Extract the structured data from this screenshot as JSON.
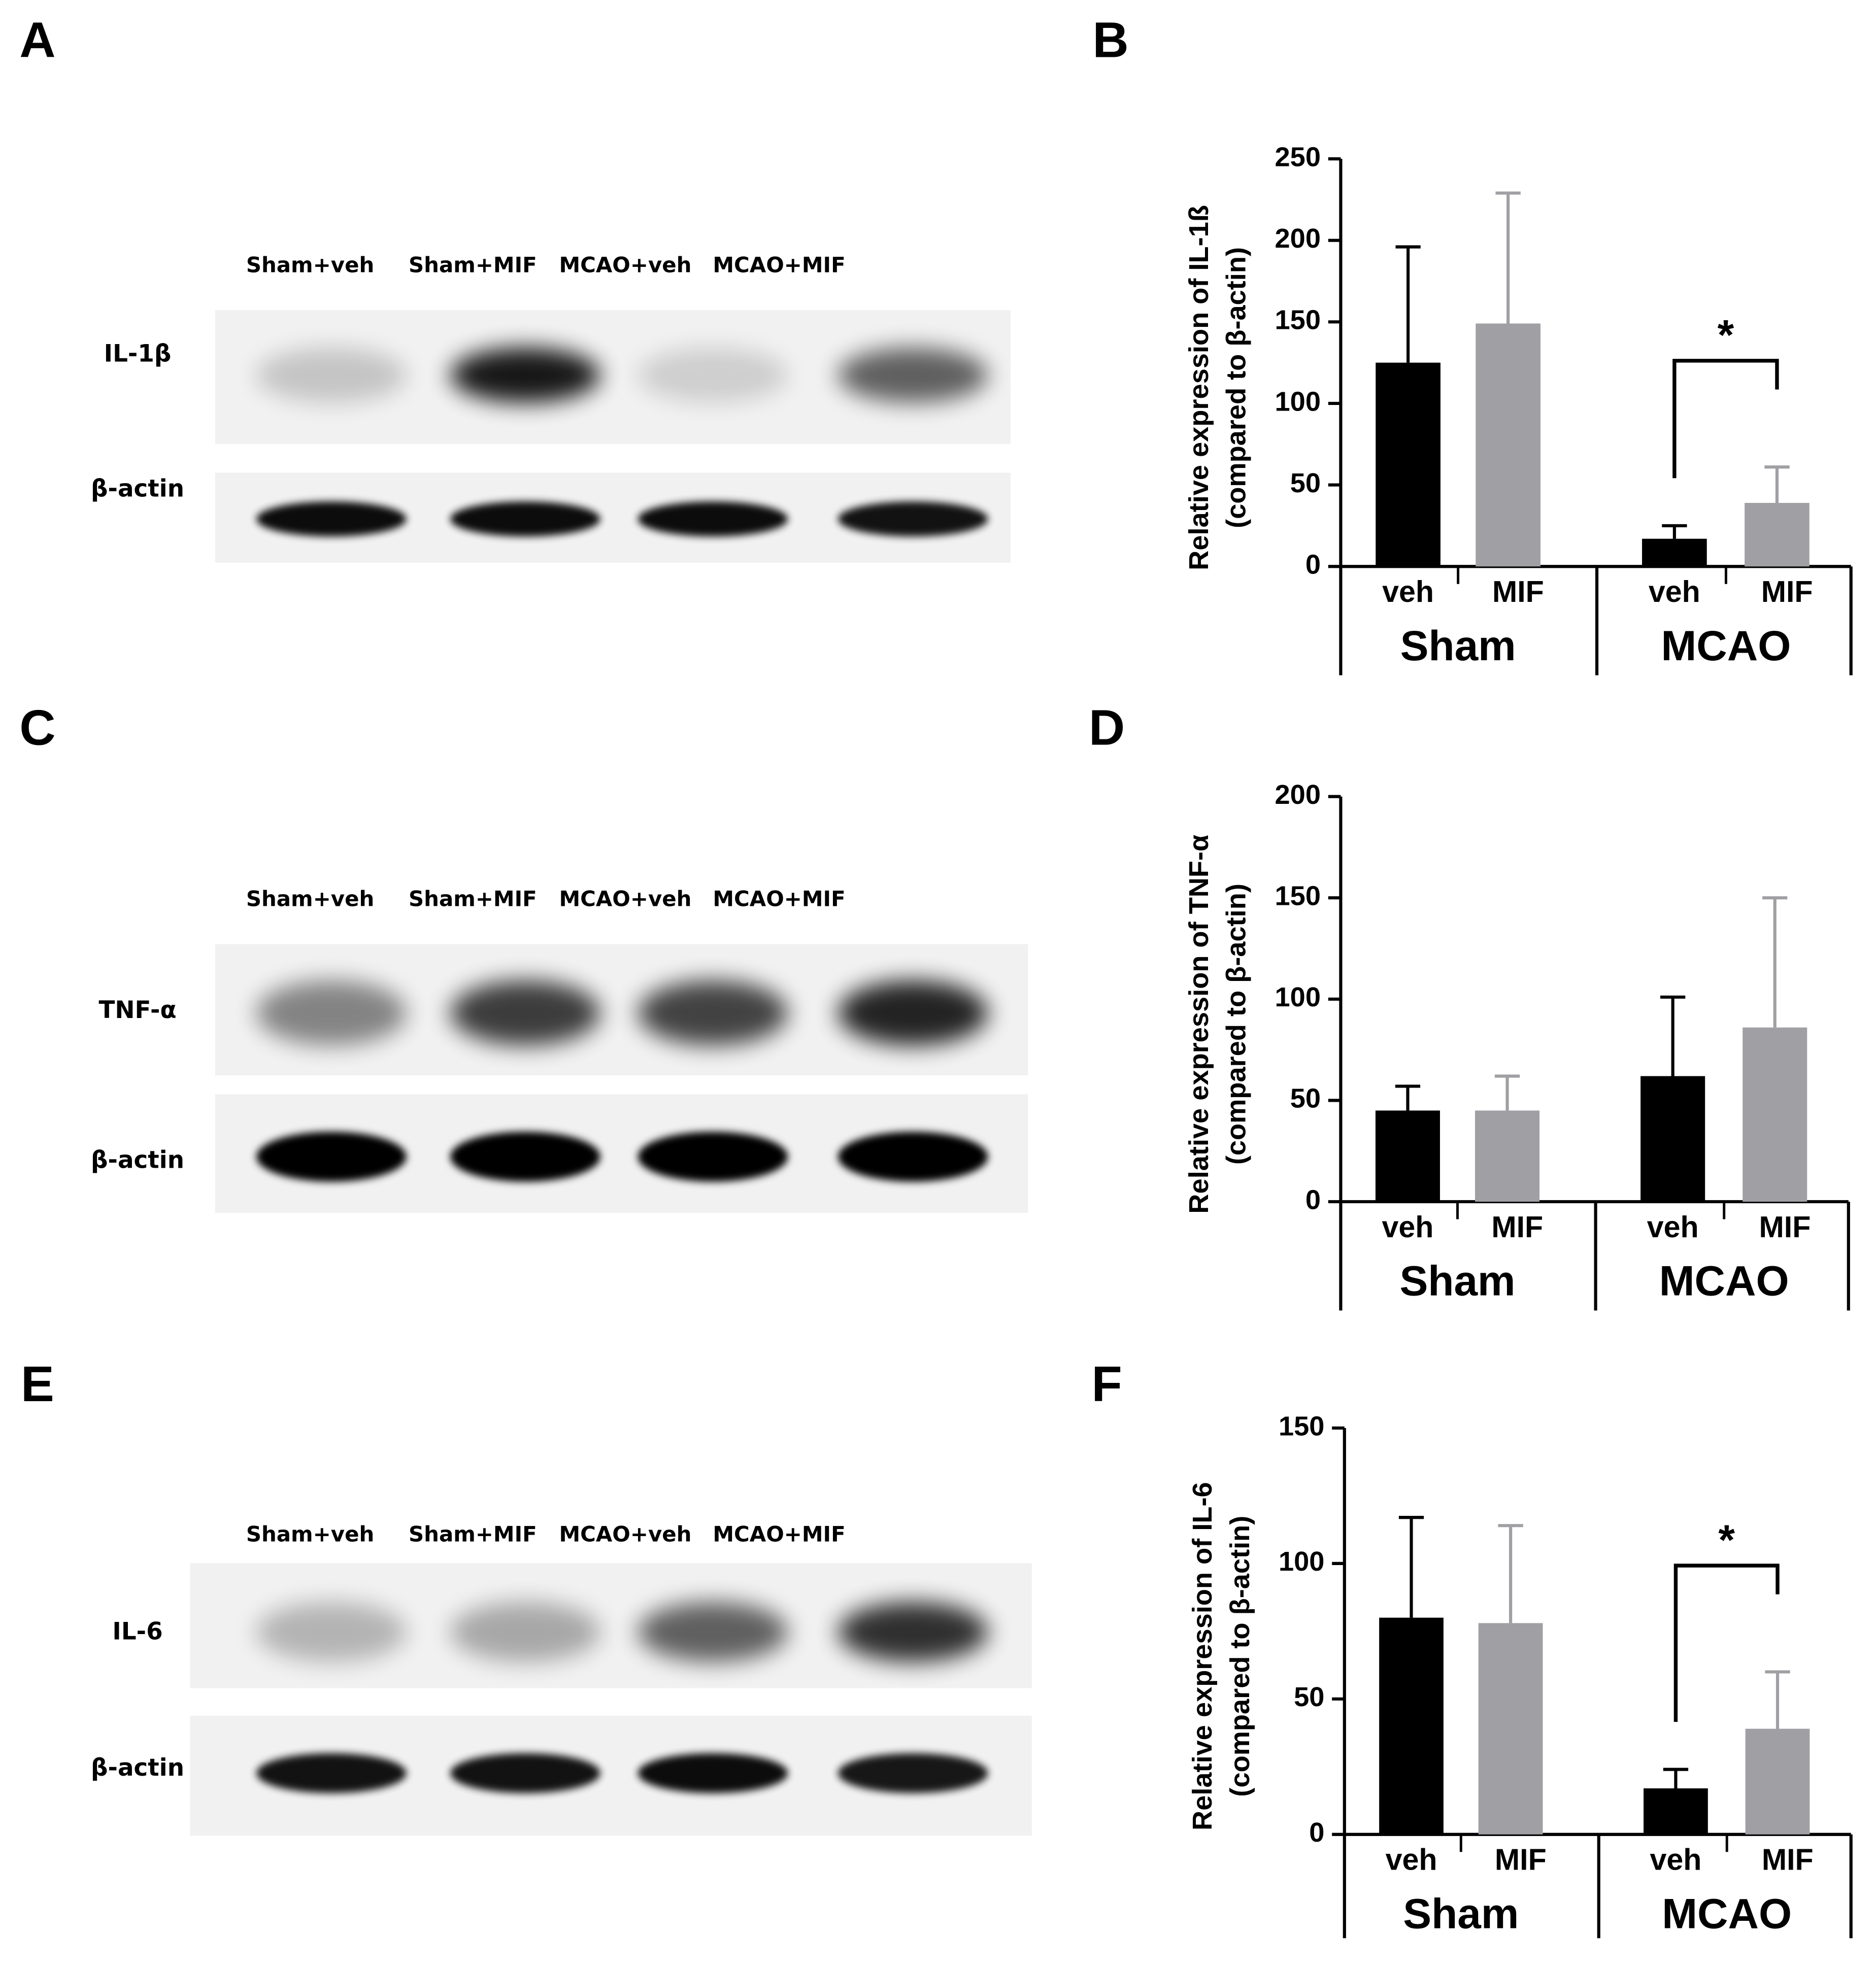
{
  "blots": [
    {
      "panel": "A",
      "lanes": [
        "Sham+veh",
        "Sham+MIF",
        "MCAO+veh",
        "MCAO+MIF"
      ],
      "bands": [
        "IL-1β",
        "β-actin"
      ]
    },
    {
      "panel": "C",
      "lanes": [
        "Sham+veh",
        "Sham+MIF",
        "MCAO+veh",
        "MCAO+MIF"
      ],
      "bands": [
        "TNF-α",
        "β-actin"
      ]
    },
    {
      "panel": "E",
      "lanes": [
        "Sham+veh",
        "Sham+MIF",
        "MCAO+veh",
        "MCAO+MIF"
      ],
      "bands": [
        "IL-6",
        "β-actin"
      ]
    }
  ],
  "chart_data": [
    {
      "type": "bar",
      "panel": "B",
      "ylabel": [
        "Relative expression of IL-1ß",
        "(compared to β-actin)"
      ],
      "categories": [
        "veh",
        "MIF",
        "veh",
        "MIF"
      ],
      "groups": [
        "Sham",
        "MCAO"
      ],
      "values": [
        125,
        149,
        17,
        39
      ],
      "errors": [
        71,
        80,
        8,
        22
      ],
      "colors": [
        "#000000",
        "#a0a0a4",
        "#000000",
        "#a0a0a4"
      ],
      "ylim": [
        0,
        250
      ],
      "yticks": [
        0,
        50,
        100,
        150,
        200,
        250
      ],
      "annotations": [
        {
          "text": "*",
          "bars": [
            2,
            3
          ]
        }
      ]
    },
    {
      "type": "bar",
      "panel": "D",
      "ylabel": [
        "Relative expression of TNF-α",
        "(compared to β-actin)"
      ],
      "categories": [
        "veh",
        "MIF",
        "veh",
        "MIF"
      ],
      "groups": [
        "Sham",
        "MCAO"
      ],
      "values": [
        45,
        45,
        62,
        86
      ],
      "errors": [
        12,
        17,
        39,
        64
      ],
      "colors": [
        "#000000",
        "#a0a0a4",
        "#000000",
        "#a0a0a4"
      ],
      "ylim": [
        0,
        200
      ],
      "yticks": [
        0,
        50,
        100,
        150,
        200
      ]
    },
    {
      "type": "bar",
      "panel": "F",
      "ylabel": [
        "Relative expression of IL-6",
        "(compared to β-actin)"
      ],
      "categories": [
        "veh",
        "MIF",
        "veh",
        "MIF"
      ],
      "groups": [
        "Sham",
        "MCAO"
      ],
      "values": [
        80,
        78,
        17,
        39
      ],
      "errors": [
        37,
        36,
        7,
        21
      ],
      "colors": [
        "#000000",
        "#a0a0a4",
        "#000000",
        "#a0a0a4"
      ],
      "ylim": [
        0,
        150
      ],
      "yticks": [
        0,
        50,
        100,
        150
      ],
      "annotations": [
        {
          "text": "*",
          "bars": [
            2,
            3
          ]
        }
      ]
    }
  ]
}
